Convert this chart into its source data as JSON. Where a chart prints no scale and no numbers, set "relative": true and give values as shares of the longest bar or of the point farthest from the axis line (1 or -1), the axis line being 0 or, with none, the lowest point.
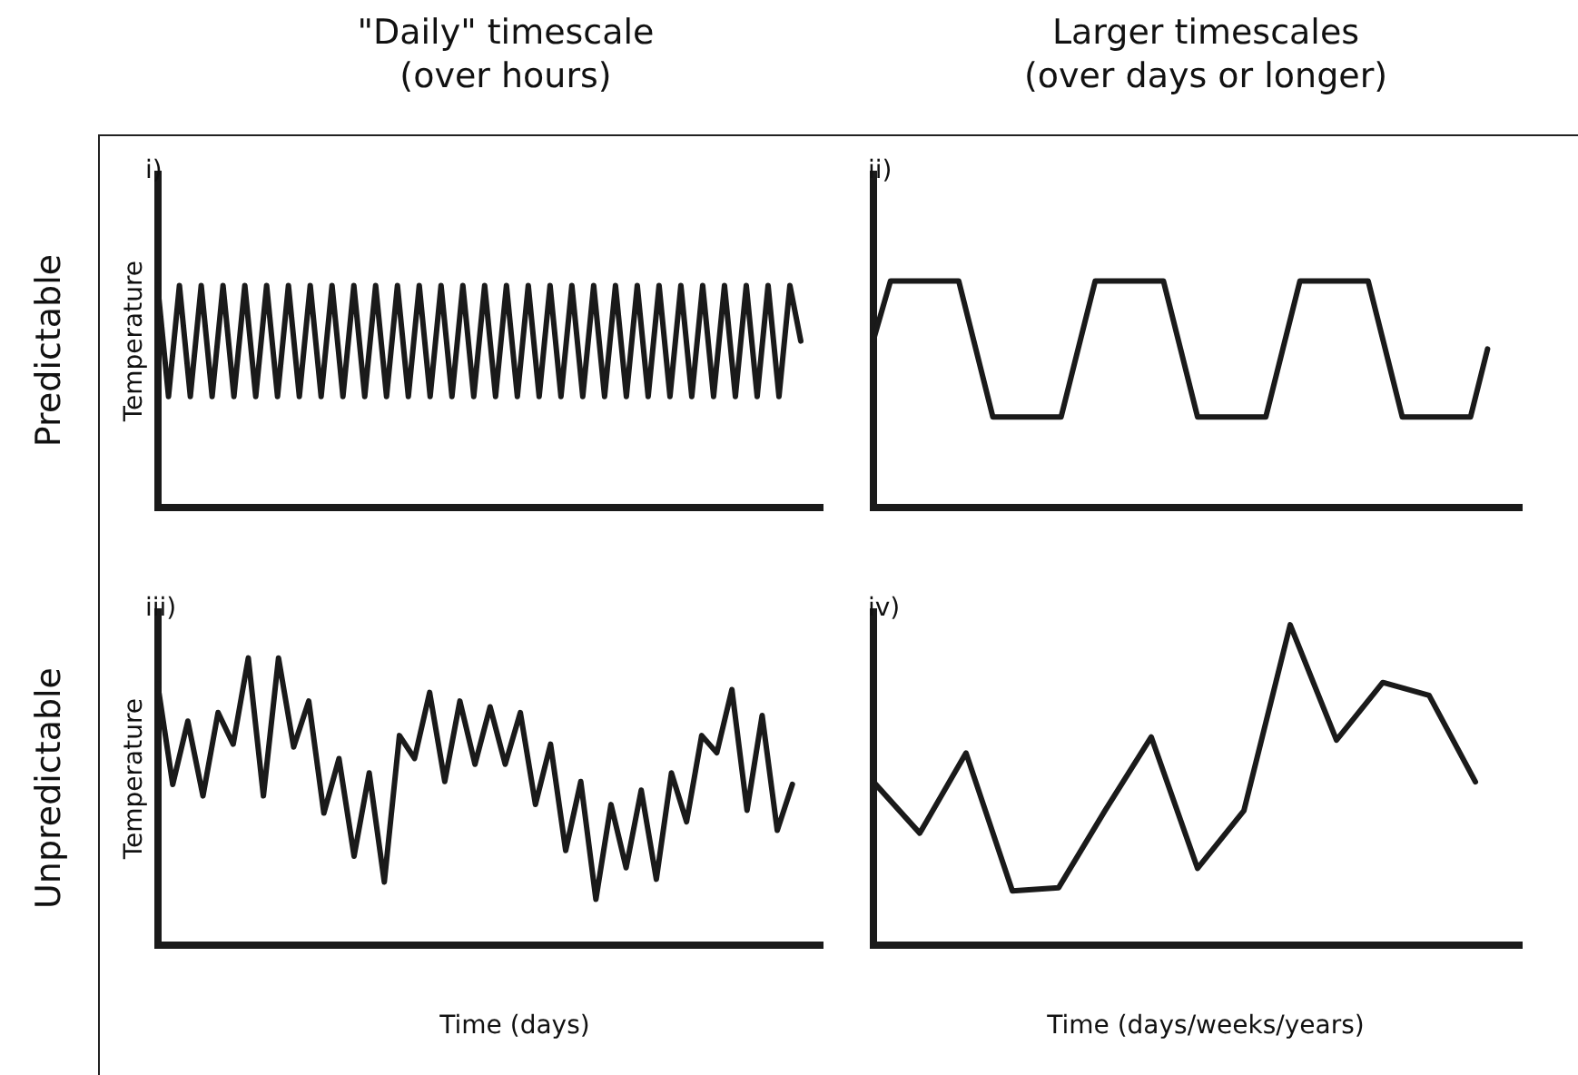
{
  "chart_data": [
    {
      "type": "line",
      "relative": true,
      "title": "\"Daily\" timescale\n(over hours)",
      "ylabel": "Temperature",
      "annotations": [
        "i)",
        "Predictable"
      ],
      "categories": [
        null,
        null,
        null,
        null,
        null,
        null,
        null,
        null,
        null,
        null,
        null,
        null,
        null,
        null,
        null,
        null,
        null,
        null,
        null,
        null,
        null,
        null,
        null,
        null,
        null,
        null,
        null,
        null,
        null,
        null,
        null,
        null,
        null,
        null,
        null,
        null,
        null,
        null,
        null,
        null,
        null,
        null,
        null,
        null,
        null,
        null,
        null,
        null,
        null,
        null,
        null,
        null,
        null,
        null,
        null,
        null,
        null,
        null,
        null,
        null,
        null,
        null
      ],
      "series": [
        {
          "color": "#1a1a1a",
          "values": [
            1,
            0.5,
            1,
            0.5,
            1,
            0.5,
            1,
            0.5,
            1,
            0.5,
            1,
            0.5,
            1,
            0.5,
            1,
            0.5,
            1,
            0.5,
            1,
            0.5,
            1,
            0.5,
            1,
            0.5,
            1,
            0.5,
            1,
            0.5,
            1,
            0.5,
            1,
            0.5,
            1,
            0.5,
            1,
            0.5,
            1,
            0.5,
            1,
            0.5,
            1,
            0.5,
            1,
            0.5,
            1,
            0.5,
            1,
            0.5,
            1,
            0.5,
            1,
            0.5,
            1,
            0.5,
            1,
            0.5,
            1,
            0.5,
            1,
            0.75,
            null,
            null
          ]
        }
      ]
    },
    {
      "type": "line",
      "relative": true,
      "title": "Larger timescales\n(over days or longer)",
      "annotations": [
        "ii)"
      ],
      "categories": [
        null,
        null,
        null,
        null,
        null,
        null,
        null,
        null,
        null,
        null,
        null,
        null,
        null,
        null,
        null,
        null,
        null,
        null,
        null,
        null,
        null,
        null,
        null,
        null,
        null,
        null,
        null,
        null,
        null,
        null,
        null,
        null,
        null,
        null,
        null,
        null,
        null,
        null,
        null
      ],
      "series": [
        {
          "color": "#1a1a1a",
          "values": [
            0.74,
            1,
            1,
            1,
            1,
            1,
            0.7,
            0.4,
            0.4,
            0.4,
            0.4,
            0.4,
            0.7,
            1,
            1,
            1,
            1,
            1,
            0.7,
            0.4,
            0.4,
            0.4,
            0.4,
            0.4,
            0.7,
            1,
            1,
            1,
            1,
            1,
            0.7,
            0.4,
            0.4,
            0.4,
            0.4,
            0.4,
            0.7,
            null,
            null
          ]
        }
      ]
    },
    {
      "type": "line",
      "relative": true,
      "ylabel": "Temperature",
      "xlabel": "Time (days)",
      "annotations": [
        "iii)",
        "Unpredictable"
      ],
      "categories": [
        null,
        null,
        null,
        null,
        null,
        null,
        null,
        null,
        null,
        null,
        null,
        null,
        null,
        null,
        null,
        null,
        null,
        null,
        null,
        null,
        null,
        null,
        null,
        null,
        null,
        null,
        null,
        null,
        null,
        null,
        null,
        null,
        null,
        null,
        null,
        null,
        null,
        null,
        null,
        null,
        null,
        null,
        null,
        null,
        null
      ],
      "series": [
        {
          "color": "#1a1a1a",
          "values": [
            0.91,
            0.56,
            0.78,
            0.52,
            0.81,
            0.7,
            1,
            0.52,
            1,
            0.69,
            0.85,
            0.46,
            0.65,
            0.31,
            0.6,
            0.22,
            0.73,
            0.65,
            0.88,
            0.57,
            0.85,
            0.63,
            0.83,
            0.63,
            0.81,
            0.49,
            0.7,
            0.33,
            0.57,
            0.16,
            0.49,
            0.27,
            0.54,
            0.23,
            0.6,
            0.43,
            0.73,
            0.67,
            0.89,
            0.47,
            0.8,
            0.4,
            0.56,
            null,
            null
          ]
        }
      ]
    },
    {
      "type": "line",
      "relative": true,
      "xlabel": "Time (days/weeks/years)",
      "annotations": [
        "iv)"
      ],
      "categories": [
        null,
        null,
        null,
        null,
        null,
        null,
        null,
        null,
        null,
        null,
        null,
        null,
        null,
        null,
        null
      ],
      "series": [
        {
          "color": "#1a1a1a",
          "values": [
            0.51,
            0.35,
            0.6,
            0.17,
            0.18,
            0.42,
            0.65,
            0.24,
            0.42,
            1,
            0.64,
            0.82,
            0.78,
            0.51,
            null
          ]
        }
      ]
    }
  ]
}
